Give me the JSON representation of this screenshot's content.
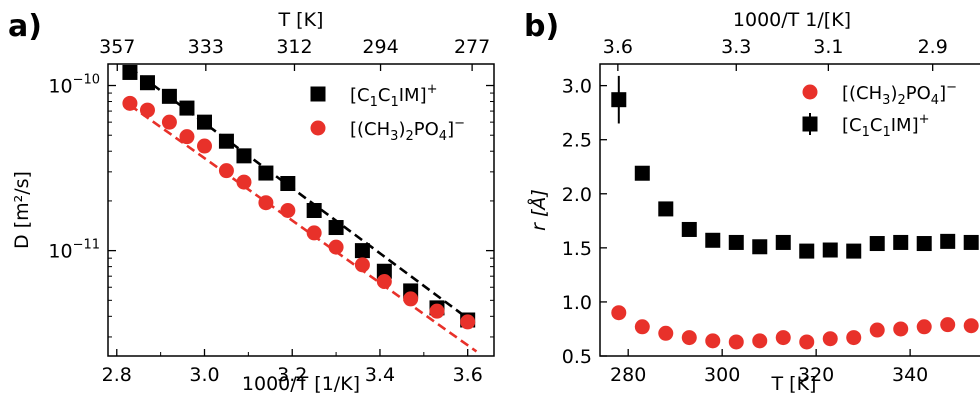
{
  "chart_data": [
    {
      "panel_label": "a)",
      "type": "scatter",
      "scale_y": "log",
      "xlabel": "1000/T [1/K]",
      "ylabel": "D [m²/s]",
      "top_axis_label": "T [K]",
      "xlim": [
        2.78,
        3.66
      ],
      "ylim": [
        2.3e-12,
        1.35e-10
      ],
      "x_ticks": [
        "2.8",
        "3.0",
        "3.2",
        "3.4",
        "3.6"
      ],
      "x_tick_values": [
        2.8,
        3.0,
        3.2,
        3.4,
        3.6
      ],
      "y_ticks": [
        {
          "base": "10",
          "exp": "−10",
          "value": 1e-10
        },
        {
          "base": "10",
          "exp": "−11",
          "value": 1e-11
        }
      ],
      "top_ticks": [
        {
          "label": "357",
          "value": 357
        },
        {
          "label": "333",
          "value": 333
        },
        {
          "label": "312",
          "value": 312
        },
        {
          "label": "294",
          "value": 294
        },
        {
          "label": "277",
          "value": 277
        }
      ],
      "legend_position": "upper-right",
      "series": [
        {
          "name_parts": [
            [
              "[C",
              ""
            ],
            [
              "1",
              "sub"
            ],
            [
              "C",
              ""
            ],
            [
              "1",
              "sub"
            ],
            [
              "IM]",
              ""
            ],
            [
              "+",
              "sup"
            ]
          ],
          "marker": "square",
          "color": "#000000",
          "x": [
            2.83,
            2.87,
            2.92,
            2.96,
            3.0,
            3.05,
            3.09,
            3.14,
            3.19,
            3.25,
            3.3,
            3.36,
            3.41,
            3.47,
            3.53,
            3.6
          ],
          "y": [
            1.2e-10,
            1.04e-10,
            8.6e-11,
            7.3e-11,
            6e-11,
            4.6e-11,
            3.75e-11,
            2.95e-11,
            2.55e-11,
            1.75e-11,
            1.38e-11,
            1e-11,
            7.5e-12,
            5.7e-12,
            4.5e-12,
            3.8e-12
          ],
          "fit": {
            "x": [
              2.83,
              3.62
            ],
            "y": [
              1.28e-10,
              3.55e-12
            ],
            "dash": "black"
          }
        },
        {
          "name_parts": [
            [
              "[(CH",
              ""
            ],
            [
              "3",
              "sub"
            ],
            [
              ")",
              ""
            ],
            [
              "2",
              "sub"
            ],
            [
              "PO",
              ""
            ],
            [
              "4",
              "sub"
            ],
            [
              "]",
              ""
            ],
            [
              "−",
              "sup"
            ]
          ],
          "marker": "circle",
          "color": "#e8312a",
          "x": [
            2.83,
            2.87,
            2.92,
            2.96,
            3.0,
            3.05,
            3.09,
            3.14,
            3.19,
            3.25,
            3.3,
            3.36,
            3.41,
            3.47,
            3.53,
            3.6
          ],
          "y": [
            7.8e-11,
            7.1e-11,
            6e-11,
            4.9e-11,
            4.3e-11,
            3.05e-11,
            2.6e-11,
            1.95e-11,
            1.75e-11,
            1.28e-11,
            1.05e-11,
            8.2e-12,
            6.5e-12,
            5.1e-12,
            4.3e-12,
            3.7e-12
          ],
          "fit": {
            "x": [
              2.83,
              3.62
            ],
            "y": [
              7.6e-11,
              2.45e-12
            ],
            "dash": "red"
          }
        }
      ]
    },
    {
      "panel_label": "b)",
      "type": "scatter",
      "xlabel": "T [K]",
      "ylabel": "r [Å]",
      "top_axis_label": "1000/T 1/[K]",
      "xlim": [
        274,
        357
      ],
      "ylim": [
        0.5,
        3.2
      ],
      "x_ticks": [
        "280",
        "300",
        "320",
        "340"
      ],
      "x_tick_values": [
        280,
        300,
        320,
        340
      ],
      "y_ticks": [
        "0.5",
        "1.0",
        "1.5",
        "2.0",
        "2.5",
        "3.0"
      ],
      "y_tick_values": [
        0.5,
        1.0,
        1.5,
        2.0,
        2.5,
        3.0
      ],
      "top_ticks": [
        {
          "label": "3.6",
          "value": 277.8
        },
        {
          "label": "3.3",
          "value": 303.0
        },
        {
          "label": "3.1",
          "value": 322.6
        },
        {
          "label": "2.9",
          "value": 344.8
        }
      ],
      "legend_position": "upper-right",
      "series": [
        {
          "name_parts": [
            [
              "[(CH",
              ""
            ],
            [
              "3",
              "sub"
            ],
            [
              ")",
              ""
            ],
            [
              "2",
              "sub"
            ],
            [
              "PO",
              ""
            ],
            [
              "4",
              "sub"
            ],
            [
              "]",
              ""
            ],
            [
              "−",
              "sup"
            ]
          ],
          "marker": "circle",
          "color": "#e8312a",
          "x": [
            278,
            283,
            288,
            293,
            298,
            303,
            308,
            313,
            318,
            323,
            328,
            333,
            338,
            343,
            348,
            353
          ],
          "y": [
            0.9,
            0.77,
            0.71,
            0.67,
            0.64,
            0.63,
            0.64,
            0.67,
            0.63,
            0.66,
            0.67,
            0.74,
            0.75,
            0.77,
            0.79,
            0.78
          ]
        },
        {
          "name_parts": [
            [
              "[C",
              ""
            ],
            [
              "1",
              "sub"
            ],
            [
              "C",
              ""
            ],
            [
              "1",
              "sub"
            ],
            [
              "IM]",
              ""
            ],
            [
              "+",
              "sup"
            ]
          ],
          "marker": "square",
          "color": "#000000",
          "x": [
            278,
            283,
            288,
            293,
            298,
            303,
            308,
            313,
            318,
            323,
            328,
            333,
            338,
            343,
            348,
            353
          ],
          "y": [
            2.87,
            2.19,
            1.86,
            1.67,
            1.57,
            1.55,
            1.51,
            1.55,
            1.47,
            1.48,
            1.47,
            1.54,
            1.55,
            1.54,
            1.56,
            1.55
          ],
          "yerr": [
            0.22,
            0,
            0,
            0,
            0,
            0,
            0,
            0,
            0,
            0,
            0,
            0,
            0,
            0,
            0,
            0
          ]
        }
      ]
    }
  ]
}
